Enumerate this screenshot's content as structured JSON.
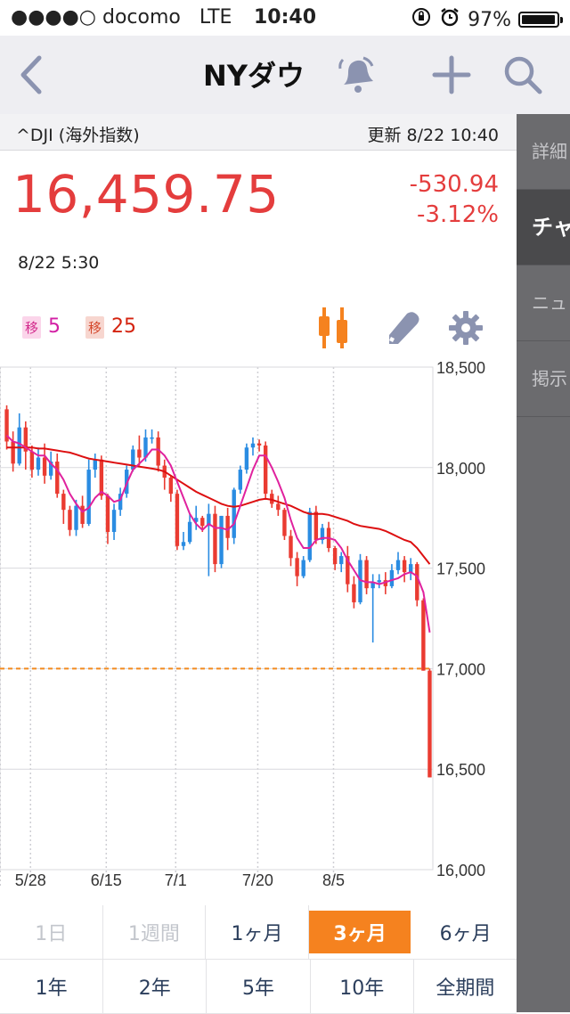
{
  "status": {
    "carrier": "●●●●○ docomo",
    "network": "LTE",
    "time": "10:40",
    "battery": "97%",
    "battery_level": 0.97
  },
  "nav": {
    "title": "NYダウ"
  },
  "sidebar": {
    "tabs": [
      {
        "label": "詳細"
      },
      {
        "label": "チャ"
      },
      {
        "label": "ニュ"
      },
      {
        "label": "掲示"
      }
    ]
  },
  "quote": {
    "symbol": "^DJI (海外指数)",
    "updated": "更新  8/22 10:40",
    "price": "16,459.75",
    "change": "-530.94",
    "change_pct": "-3.12%",
    "price_date": "8/22 5:30"
  },
  "legend": {
    "ma1": {
      "badge": "移",
      "value": "5"
    },
    "ma2": {
      "badge": "移",
      "value": "25"
    }
  },
  "colors": {
    "up": "#2a8ce2",
    "down": "#ea3b31",
    "ma5": "#e0229e",
    "ma25": "#dd0f10",
    "ref": "#f28a1e",
    "accent": "#f5821f"
  },
  "chart_data": {
    "type": "candlestick",
    "y_axis": {
      "min": 16000,
      "max": 18500,
      "ticks": [
        "18,500",
        "18,000",
        "17,500",
        "17,000",
        "16,500",
        "16,000"
      ],
      "tick_values": [
        18500,
        18000,
        17500,
        17000,
        16500,
        16000
      ]
    },
    "x_axis": {
      "labels": [
        "5/28",
        "6/15",
        "7/1",
        "7/20",
        "8/5"
      ],
      "label_positions": [
        8,
        20,
        31,
        44,
        56
      ]
    },
    "reference_line": 17000,
    "grid": "dotted vertical, solid horizontal",
    "candles": [
      {
        "o": 18290,
        "h": 18310,
        "l": 18090,
        "c": 18130
      },
      {
        "o": 18130,
        "h": 18180,
        "l": 17980,
        "c": 18020
      },
      {
        "o": 18020,
        "h": 18270,
        "l": 18010,
        "c": 18200
      },
      {
        "o": 18200,
        "h": 18230,
        "l": 17990,
        "c": 18080
      },
      {
        "o": 18080,
        "h": 18110,
        "l": 17950,
        "c": 17990
      },
      {
        "o": 17990,
        "h": 18100,
        "l": 17960,
        "c": 18050
      },
      {
        "o": 18050,
        "h": 18120,
        "l": 17920,
        "c": 17960
      },
      {
        "o": 17960,
        "h": 18080,
        "l": 17940,
        "c": 18030
      },
      {
        "o": 18030,
        "h": 18070,
        "l": 17850,
        "c": 17870
      },
      {
        "o": 17870,
        "h": 17890,
        "l": 17720,
        "c": 17790
      },
      {
        "o": 17790,
        "h": 17810,
        "l": 17660,
        "c": 17690
      },
      {
        "o": 17690,
        "h": 17840,
        "l": 17660,
        "c": 17810
      },
      {
        "o": 17810,
        "h": 17860,
        "l": 17700,
        "c": 17720
      },
      {
        "o": 17720,
        "h": 18040,
        "l": 17710,
        "c": 17990
      },
      {
        "o": 17990,
        "h": 18070,
        "l": 17950,
        "c": 18040
      },
      {
        "o": 18040,
        "h": 18060,
        "l": 17840,
        "c": 17860
      },
      {
        "o": 17860,
        "h": 17870,
        "l": 17620,
        "c": 17680
      },
      {
        "o": 17680,
        "h": 17820,
        "l": 17640,
        "c": 17790
      },
      {
        "o": 17790,
        "h": 17900,
        "l": 17760,
        "c": 17870
      },
      {
        "o": 17870,
        "h": 18010,
        "l": 17850,
        "c": 17990
      },
      {
        "o": 17990,
        "h": 18110,
        "l": 17980,
        "c": 18090
      },
      {
        "o": 18090,
        "h": 18160,
        "l": 18010,
        "c": 18050
      },
      {
        "o": 18050,
        "h": 18190,
        "l": 18030,
        "c": 18150
      },
      {
        "o": 18150,
        "h": 18190,
        "l": 18120,
        "c": 18150
      },
      {
        "o": 18150,
        "h": 18180,
        "l": 17980,
        "c": 18010
      },
      {
        "o": 18010,
        "h": 18040,
        "l": 17890,
        "c": 17950
      },
      {
        "o": 17950,
        "h": 17960,
        "l": 17830,
        "c": 17870
      },
      {
        "o": 17870,
        "h": 17890,
        "l": 17590,
        "c": 17610
      },
      {
        "o": 17610,
        "h": 17680,
        "l": 17590,
        "c": 17630
      },
      {
        "o": 17630,
        "h": 17770,
        "l": 17620,
        "c": 17730
      },
      {
        "o": 17730,
        "h": 17810,
        "l": 17690,
        "c": 17750
      },
      {
        "o": 17750,
        "h": 17760,
        "l": 17680,
        "c": 17710
      },
      {
        "o": 17710,
        "h": 17820,
        "l": 17460,
        "c": 17770
      },
      {
        "o": 17770,
        "h": 17810,
        "l": 17480,
        "c": 17520
      },
      {
        "o": 17520,
        "h": 17760,
        "l": 17500,
        "c": 17760
      },
      {
        "o": 17760,
        "h": 17800,
        "l": 17590,
        "c": 17650
      },
      {
        "o": 17650,
        "h": 17900,
        "l": 17620,
        "c": 17890
      },
      {
        "o": 17890,
        "h": 18010,
        "l": 17870,
        "c": 17990
      },
      {
        "o": 17990,
        "h": 18120,
        "l": 17970,
        "c": 18100
      },
      {
        "o": 18100,
        "h": 18150,
        "l": 18060,
        "c": 18120
      },
      {
        "o": 18120,
        "h": 18140,
        "l": 18080,
        "c": 18110
      },
      {
        "o": 18110,
        "h": 18130,
        "l": 17840,
        "c": 17870
      },
      {
        "o": 17870,
        "h": 17890,
        "l": 17800,
        "c": 17820
      },
      {
        "o": 17820,
        "h": 17860,
        "l": 17760,
        "c": 17790
      },
      {
        "o": 17790,
        "h": 17800,
        "l": 17640,
        "c": 17660
      },
      {
        "o": 17660,
        "h": 17690,
        "l": 17510,
        "c": 17550
      },
      {
        "o": 17550,
        "h": 17580,
        "l": 17410,
        "c": 17460
      },
      {
        "o": 17460,
        "h": 17560,
        "l": 17450,
        "c": 17540
      },
      {
        "o": 17540,
        "h": 17800,
        "l": 17530,
        "c": 17780
      },
      {
        "o": 17780,
        "h": 17810,
        "l": 17620,
        "c": 17640
      },
      {
        "o": 17640,
        "h": 17720,
        "l": 17620,
        "c": 17700
      },
      {
        "o": 17700,
        "h": 17730,
        "l": 17580,
        "c": 17600
      },
      {
        "o": 17600,
        "h": 17610,
        "l": 17490,
        "c": 17520
      },
      {
        "o": 17520,
        "h": 17580,
        "l": 17480,
        "c": 17560
      },
      {
        "o": 17560,
        "h": 17610,
        "l": 17380,
        "c": 17420
      },
      {
        "o": 17420,
        "h": 17460,
        "l": 17300,
        "c": 17330
      },
      {
        "o": 17330,
        "h": 17570,
        "l": 17320,
        "c": 17540
      },
      {
        "o": 17540,
        "h": 17560,
        "l": 17370,
        "c": 17400
      },
      {
        "o": 17400,
        "h": 17470,
        "l": 17130,
        "c": 17430
      },
      {
        "o": 17430,
        "h": 17470,
        "l": 17400,
        "c": 17440
      },
      {
        "o": 17440,
        "h": 17480,
        "l": 17370,
        "c": 17410
      },
      {
        "o": 17410,
        "h": 17520,
        "l": 17400,
        "c": 17490
      },
      {
        "o": 17490,
        "h": 17580,
        "l": 17470,
        "c": 17540
      },
      {
        "o": 17540,
        "h": 17560,
        "l": 17430,
        "c": 17480
      },
      {
        "o": 17480,
        "h": 17550,
        "l": 17440,
        "c": 17520
      },
      {
        "o": 17520,
        "h": 17530,
        "l": 17310,
        "c": 17340
      },
      {
        "o": 17340,
        "h": 17350,
        "l": 16990,
        "c": 16990
      },
      {
        "o": 16990,
        "h": 17000,
        "l": 16459,
        "c": 16459
      }
    ],
    "series": [
      {
        "name": "移 5",
        "values": [
          18160,
          18130,
          18120,
          18100,
          18080,
          18060,
          18060,
          18020,
          17990,
          17940,
          17870,
          17820,
          17780,
          17800,
          17850,
          17880,
          17860,
          17830,
          17840,
          17920,
          17990,
          18020,
          18050,
          18090,
          18090,
          18060,
          18010,
          17930,
          17850,
          17770,
          17720,
          17690,
          17720,
          17700,
          17700,
          17690,
          17720,
          17810,
          17900,
          17990,
          18060,
          18060,
          18000,
          17930,
          17850,
          17740,
          17650,
          17600,
          17600,
          17640,
          17650,
          17650,
          17640,
          17600,
          17540,
          17490,
          17440,
          17430,
          17430,
          17420,
          17430,
          17440,
          17450,
          17470,
          17480,
          17460,
          17380,
          17180
        ]
      },
      {
        "name": "移 25",
        "values": [
          18100,
          18100,
          18100,
          18100,
          18100,
          18095,
          18095,
          18090,
          18085,
          18080,
          18075,
          18065,
          18055,
          18045,
          18040,
          18035,
          18030,
          18025,
          18020,
          18015,
          18010,
          18005,
          18000,
          17995,
          17990,
          17980,
          17960,
          17940,
          17920,
          17900,
          17880,
          17865,
          17850,
          17835,
          17820,
          17810,
          17805,
          17810,
          17820,
          17830,
          17840,
          17845,
          17840,
          17830,
          17820,
          17810,
          17795,
          17780,
          17770,
          17770,
          17770,
          17765,
          17755,
          17745,
          17735,
          17720,
          17710,
          17705,
          17700,
          17695,
          17685,
          17670,
          17655,
          17640,
          17630,
          17600,
          17560,
          17520
        ]
      }
    ]
  },
  "periods": {
    "row1": [
      "1日",
      "1週間",
      "1ヶ月",
      "3ヶ月",
      "6ヶ月"
    ],
    "row2": [
      "1年",
      "2年",
      "5年",
      "10年",
      "全期間"
    ]
  }
}
